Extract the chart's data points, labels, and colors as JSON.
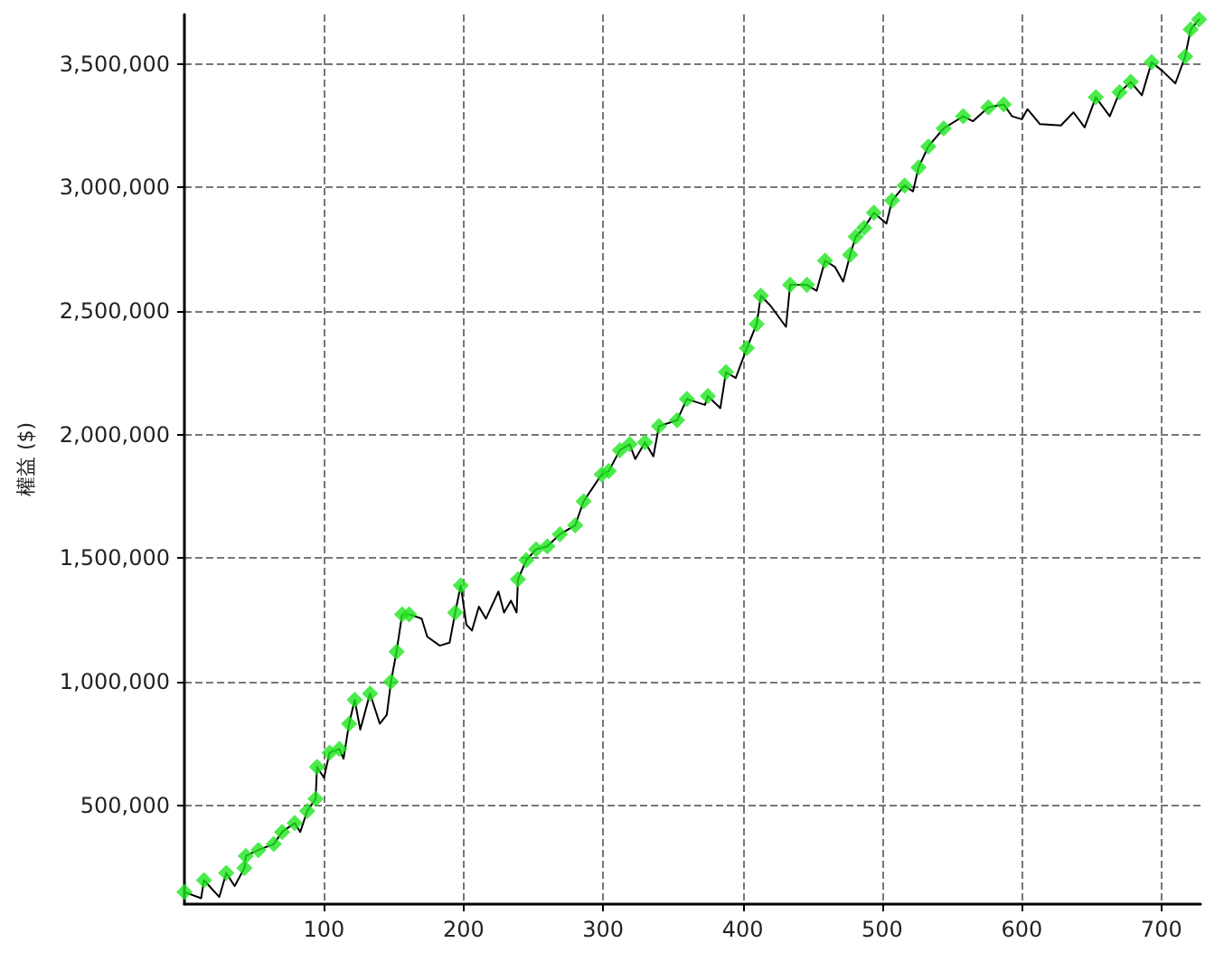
{
  "chart_data": {
    "type": "line",
    "ylabel": "權益 ($)",
    "xlim": [
      0,
      728
    ],
    "ylim": [
      100000,
      3700000
    ],
    "xticks": [
      100,
      200,
      300,
      400,
      500,
      600,
      700
    ],
    "yticks": [
      {
        "value": 500000,
        "label": "500,000"
      },
      {
        "value": 1000000,
        "label": "1,000,000"
      },
      {
        "value": 1500000,
        "label": "1,500,000"
      },
      {
        "value": 2000000,
        "label": "2,000,000"
      },
      {
        "value": 2500000,
        "label": "2,500,000"
      },
      {
        "value": 3000000,
        "label": "3,000,000"
      },
      {
        "value": 3500000,
        "label": "3,500,000"
      }
    ],
    "grid": true,
    "series": [
      {
        "type": "line",
        "color": "#000000",
        "marker": "none",
        "line_style": "solid",
        "x": [
          0,
          12,
          14,
          25,
          30,
          36,
          43,
          44,
          53,
          64,
          70,
          79,
          83,
          88,
          94,
          95,
          100,
          104,
          111,
          114,
          118,
          122,
          126,
          133,
          140,
          145,
          148,
          152,
          156,
          161,
          170,
          174,
          183,
          190,
          194,
          198,
          202,
          206,
          211,
          216,
          225,
          229,
          234,
          238,
          239,
          245,
          252,
          260,
          269,
          280,
          286,
          299,
          304,
          312,
          319,
          323,
          330,
          336,
          340,
          353,
          360,
          373,
          375,
          384,
          388,
          395,
          403,
          410,
          413,
          420,
          431,
          434,
          446,
          453,
          459,
          466,
          472,
          477,
          481,
          487,
          494,
          503,
          507,
          516,
          522,
          526,
          533,
          544,
          558,
          565,
          576,
          587,
          593,
          600,
          604,
          613,
          628,
          637,
          645,
          653,
          663,
          670,
          678,
          686,
          693,
          701,
          710,
          717,
          721,
          727
        ],
        "values": [
          149000,
          124000,
          197000,
          129000,
          226000,
          173000,
          246000,
          295000,
          319000,
          343000,
          392000,
          428000,
          392000,
          477000,
          526000,
          655000,
          611000,
          713000,
          728000,
          689000,
          830000,
          927000,
          806000,
          952000,
          830000,
          866000,
          1000000,
          1122000,
          1273000,
          1273000,
          1255000,
          1182000,
          1146000,
          1158000,
          1280000,
          1390000,
          1231000,
          1207000,
          1304000,
          1255000,
          1365000,
          1280000,
          1328000,
          1280000,
          1414000,
          1492000,
          1536000,
          1548000,
          1596000,
          1633000,
          1730000,
          1839000,
          1852000,
          1937000,
          1961000,
          1901000,
          1969000,
          1912000,
          2034000,
          2058000,
          2144000,
          2120000,
          2156000,
          2107000,
          2253000,
          2229000,
          2350000,
          2447000,
          2562000,
          2521000,
          2436000,
          2606000,
          2606000,
          2582000,
          2704000,
          2679000,
          2619000,
          2728000,
          2801000,
          2837000,
          2898000,
          2854000,
          2947000,
          3008000,
          2984000,
          3081000,
          3166000,
          3239000,
          3288000,
          3268000,
          3324000,
          3336000,
          3288000,
          3276000,
          3317000,
          3256000,
          3251000,
          3304000,
          3243000,
          3365000,
          3288000,
          3385000,
          3427000,
          3373000,
          3507000,
          3470000,
          3421000,
          3530000,
          3640000,
          3680000
        ]
      },
      {
        "type": "scatter",
        "color": "#1ee61e",
        "marker": "diamond",
        "x": [
          0,
          14,
          30,
          43,
          44,
          53,
          64,
          70,
          79,
          88,
          94,
          95,
          104,
          111,
          118,
          122,
          133,
          148,
          152,
          156,
          161,
          194,
          198,
          239,
          245,
          252,
          260,
          269,
          280,
          286,
          299,
          304,
          312,
          319,
          330,
          340,
          353,
          360,
          375,
          388,
          403,
          410,
          413,
          434,
          446,
          459,
          477,
          481,
          487,
          494,
          507,
          516,
          526,
          533,
          544,
          558,
          576,
          587,
          653,
          670,
          678,
          693,
          717,
          721,
          727
        ],
        "values": [
          149000,
          197000,
          226000,
          246000,
          295000,
          319000,
          343000,
          392000,
          428000,
          477000,
          526000,
          655000,
          713000,
          728000,
          830000,
          927000,
          952000,
          1000000,
          1122000,
          1273000,
          1273000,
          1280000,
          1390000,
          1414000,
          1492000,
          1536000,
          1548000,
          1596000,
          1633000,
          1730000,
          1839000,
          1852000,
          1937000,
          1961000,
          1969000,
          2034000,
          2058000,
          2144000,
          2156000,
          2253000,
          2350000,
          2447000,
          2562000,
          2606000,
          2606000,
          2704000,
          2728000,
          2801000,
          2837000,
          2898000,
          2947000,
          3008000,
          3081000,
          3166000,
          3239000,
          3288000,
          3324000,
          3336000,
          3365000,
          3385000,
          3427000,
          3507000,
          3530000,
          3640000,
          3680000
        ]
      }
    ]
  }
}
